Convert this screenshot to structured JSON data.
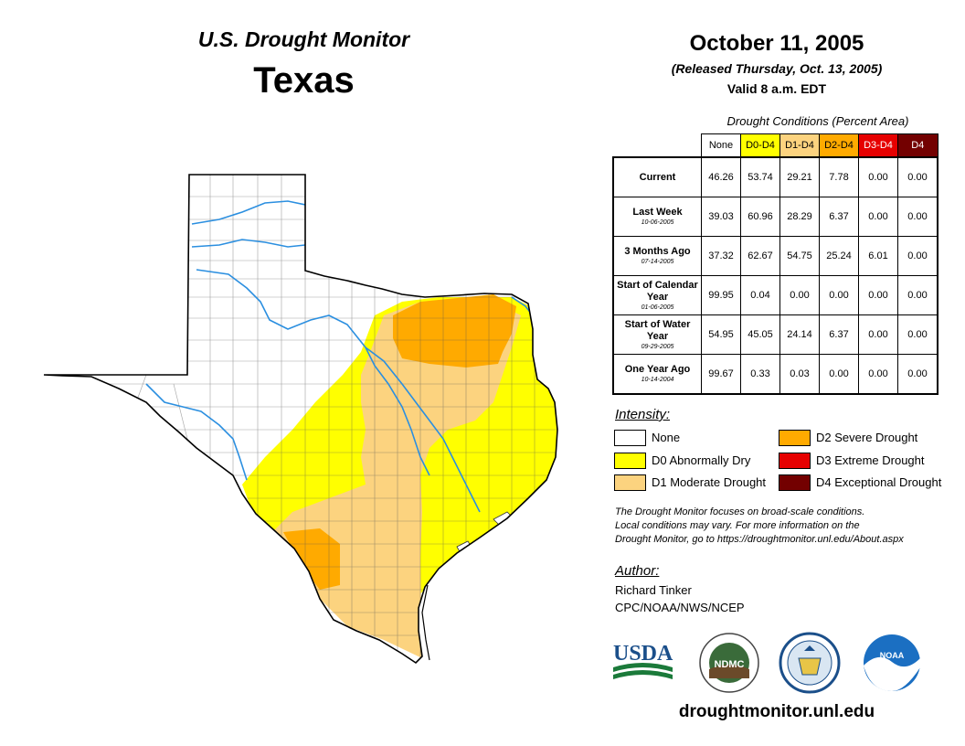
{
  "header": {
    "subtitle": "U.S. Drought Monitor",
    "state": "Texas",
    "date": "October 11, 2005",
    "released": "(Released Thursday, Oct. 13, 2005)",
    "valid": "Valid 8 a.m. EDT"
  },
  "table": {
    "caption": "Drought Conditions (Percent Area)",
    "columns": [
      {
        "label": "None",
        "color": "#ffffff"
      },
      {
        "label": "D0-D4",
        "color": "#ffff00"
      },
      {
        "label": "D1-D4",
        "color": "#fcd37f"
      },
      {
        "label": "D2-D4",
        "color": "#ffaa00"
      },
      {
        "label": "D3-D4",
        "color": "#e60000"
      },
      {
        "label": "D4",
        "color": "#730000"
      }
    ],
    "rows": [
      {
        "label": "Current",
        "date": "",
        "values": [
          "46.26",
          "53.74",
          "29.21",
          "7.78",
          "0.00",
          "0.00"
        ]
      },
      {
        "label": "Last Week",
        "date": "10-06-2005",
        "values": [
          "39.03",
          "60.96",
          "28.29",
          "6.37",
          "0.00",
          "0.00"
        ]
      },
      {
        "label": "3 Months Ago",
        "date": "07-14-2005",
        "values": [
          "37.32",
          "62.67",
          "54.75",
          "25.24",
          "6.01",
          "0.00"
        ]
      },
      {
        "label": "Start of Calendar Year",
        "date": "01-06-2005",
        "values": [
          "99.95",
          "0.04",
          "0.00",
          "0.00",
          "0.00",
          "0.00"
        ]
      },
      {
        "label": "Start of Water Year",
        "date": "09-29-2005",
        "values": [
          "54.95",
          "45.05",
          "24.14",
          "6.37",
          "0.00",
          "0.00"
        ]
      },
      {
        "label": "One Year Ago",
        "date": "10-14-2004",
        "values": [
          "99.67",
          "0.33",
          "0.03",
          "0.00",
          "0.00",
          "0.00"
        ]
      }
    ]
  },
  "legend": {
    "title": "Intensity:",
    "items": [
      {
        "label": "None",
        "color": "#ffffff"
      },
      {
        "label": "D0 Abnormally Dry",
        "color": "#ffff00"
      },
      {
        "label": "D1 Moderate Drought",
        "color": "#fcd37f"
      },
      {
        "label": "D2 Severe Drought",
        "color": "#ffaa00"
      },
      {
        "label": "D3 Extreme Drought",
        "color": "#e60000"
      },
      {
        "label": "D4 Exceptional Drought",
        "color": "#730000"
      }
    ]
  },
  "note": {
    "line1": "The Drought Monitor focuses on broad-scale conditions.",
    "line2": "Local conditions may vary. For more information on the",
    "line3": "Drought Monitor, go to https://droughtmonitor.unl.edu/About.aspx"
  },
  "author": {
    "title": "Author:",
    "name": "Richard Tinker",
    "org": "CPC/NOAA/NWS/NCEP"
  },
  "logos": {
    "usda": "USDA",
    "ndmc": "NDMC",
    "noaa": "NOAA"
  },
  "website": "droughtmonitor.unl.edu"
}
